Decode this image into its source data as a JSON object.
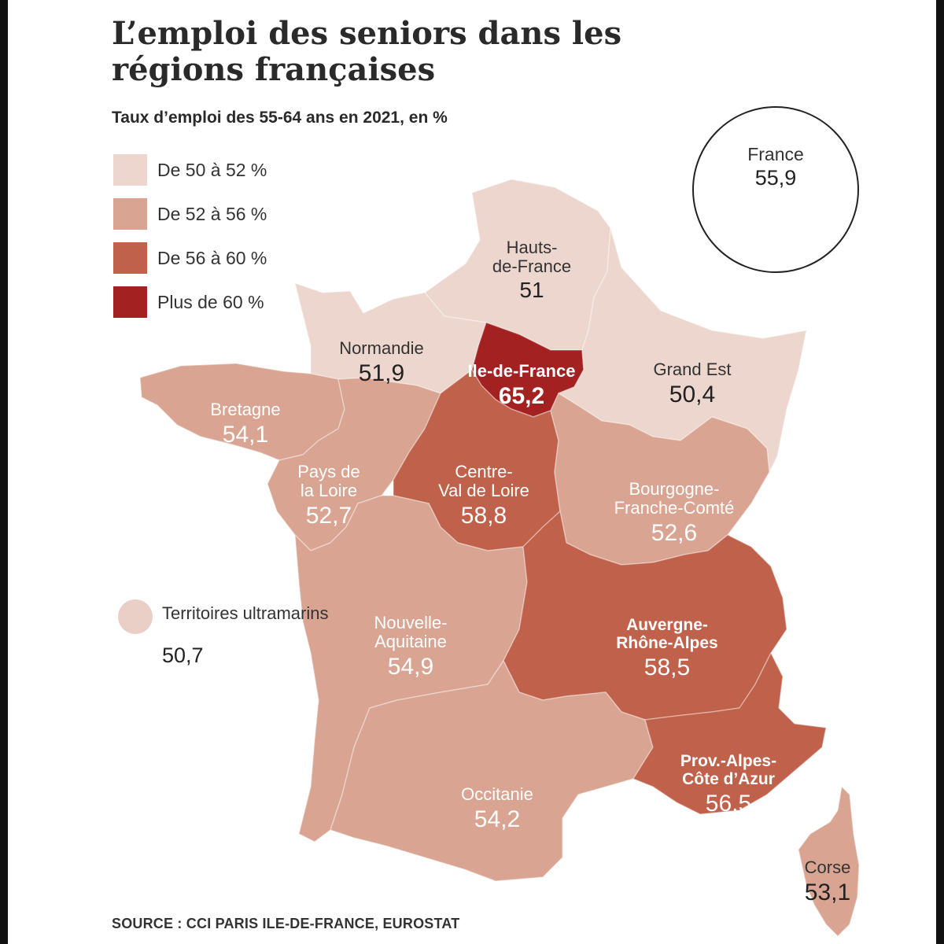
{
  "title": "L’emploi des seniors dans les régions françaises",
  "subtitle": "Taux d’emploi des 55-64 ans en 2021, en %",
  "legend": [
    {
      "label": "De 50 à 52 %",
      "color": "#ecd6cd"
    },
    {
      "label": "De 52 à 56 %",
      "color": "#d9a592"
    },
    {
      "label": "De 56 à 60 %",
      "color": "#c0614b"
    },
    {
      "label": "Plus de 60 %",
      "color": "#a32121"
    }
  ],
  "france": {
    "name": "France",
    "value": "55,9"
  },
  "overseas": {
    "name": "Territoires ultramarins",
    "value": "50,7"
  },
  "regions": [
    {
      "id": "hauts-de-france",
      "name_lines": [
        "Hauts-",
        "de-France"
      ],
      "value": "51",
      "bold": false,
      "label_color": "#333333"
    },
    {
      "id": "normandie",
      "name_lines": [
        "Normandie"
      ],
      "value": "51,9",
      "bold": false,
      "label_color": "#333333"
    },
    {
      "id": "ile-de-france",
      "name_lines": [
        "Ile-de-France"
      ],
      "value": "65,2",
      "bold": true,
      "label_color": "#ffffff"
    },
    {
      "id": "grand-est",
      "name_lines": [
        "Grand Est"
      ],
      "value": "50,4",
      "bold": false,
      "label_color": "#333333"
    },
    {
      "id": "bretagne",
      "name_lines": [
        "Bretagne"
      ],
      "value": "54,1",
      "bold": false,
      "label_color": "#ffffff"
    },
    {
      "id": "pays-de-la-loire",
      "name_lines": [
        "Pays de",
        "la Loire"
      ],
      "value": "52,7",
      "bold": false,
      "label_color": "#ffffff"
    },
    {
      "id": "centre-val-de-loire",
      "name_lines": [
        "Centre-",
        "Val de Loire"
      ],
      "value": "58,8",
      "bold": false,
      "label_color": "#ffffff"
    },
    {
      "id": "bourgogne-franche-comte",
      "name_lines": [
        "Bourgogne-",
        "Franche-Comté"
      ],
      "value": "52,6",
      "bold": false,
      "label_color": "#ffffff"
    },
    {
      "id": "nouvelle-aquitaine",
      "name_lines": [
        "Nouvelle-",
        "Aquitaine"
      ],
      "value": "54,9",
      "bold": false,
      "label_color": "#ffffff"
    },
    {
      "id": "auvergne-rhone-alpes",
      "name_lines": [
        "Auvergne-",
        "Rhône-Alpes"
      ],
      "value": "58,5",
      "bold": true,
      "label_color": "#ffffff"
    },
    {
      "id": "occitanie",
      "name_lines": [
        "Occitanie"
      ],
      "value": "54,2",
      "bold": false,
      "label_color": "#ffffff"
    },
    {
      "id": "provence-alpes-cote-dazur",
      "name_lines": [
        "Prov.-Alpes-",
        "Côte d’Azur"
      ],
      "value": "56,5",
      "bold": true,
      "label_color": "#ffffff"
    },
    {
      "id": "corse",
      "name_lines": [
        "Corse"
      ],
      "value": "53,1",
      "bold": false,
      "label_color": "#333333"
    }
  ],
  "source": "SOURCE : CCI PARIS ILE-DE-FRANCE, EUROSTAT"
}
